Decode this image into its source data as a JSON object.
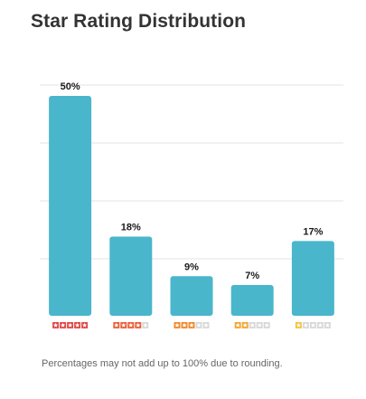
{
  "title": "Star Rating Distribution",
  "footnote": "Percentages may not add up to 100% due to rounding.",
  "colors": {
    "bar": "#4ab6cb",
    "grid": "#e3e3e3",
    "stars": [
      "#e04848",
      "#e8603a",
      "#ee8a2e",
      "#f2a732",
      "#f4c43a"
    ],
    "star_empty": "#d8d8d8"
  },
  "chart_data": {
    "type": "bar",
    "categories": [
      "5 stars",
      "4 stars",
      "3 stars",
      "2 stars",
      "1 star"
    ],
    "star_counts": [
      5,
      4,
      3,
      2,
      1
    ],
    "values": [
      50,
      18,
      9,
      7,
      17
    ],
    "data_labels": [
      "50%",
      "18%",
      "9%",
      "7%",
      "17%"
    ],
    "ylim": [
      0,
      50
    ],
    "grid": true,
    "xlabel": "",
    "ylabel": ""
  }
}
